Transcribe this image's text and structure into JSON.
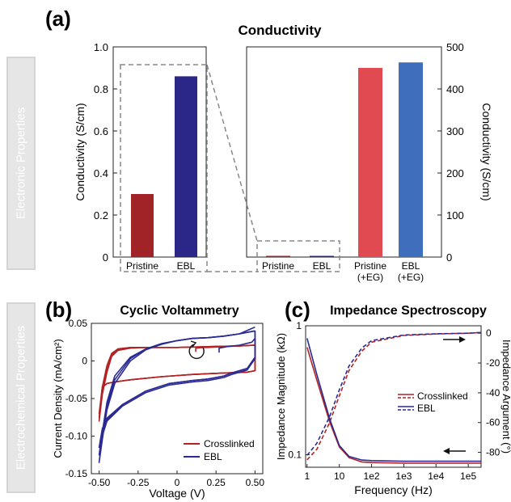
{
  "side_labels": {
    "electronic": "Electronic Properties",
    "electrochemical": "Electrochemical Properties"
  },
  "panel_labels": {
    "a": "(a)",
    "b": "(b)",
    "c": "(c)"
  },
  "colors": {
    "crosslinked": "#b22224",
    "ebl": "#2b2a93",
    "pristine_eg": "#e24a52",
    "ebl_eg": "#3f6ebd",
    "dash_box": "#888888",
    "side_panel": "#e6e6e6"
  },
  "chart_data": [
    {
      "id": "conductivity-left",
      "type": "bar",
      "title": "Conductivity",
      "ylabel": "Conductivity (S/cm)",
      "categories": [
        "Pristine",
        "EBL"
      ],
      "values": [
        0.3,
        0.86
      ],
      "bar_colors": [
        "#a12227",
        "#2b2789"
      ],
      "ylim": [
        0,
        1.0
      ],
      "yticks": [
        0,
        0.2,
        0.4,
        0.6,
        0.8,
        1.0
      ],
      "ytick_labels": [
        "0",
        "0.2",
        "0.4",
        "0.6",
        "0.8",
        "1.0"
      ]
    },
    {
      "id": "conductivity-right",
      "type": "bar",
      "ylabel": "Conductivity (S/cm)",
      "y_axis_side": "right",
      "categories": [
        "Pristine",
        "EBL",
        "Pristine\n(+EG)",
        "EBL\n(+EG)"
      ],
      "values": [
        0.3,
        0.86,
        450,
        463
      ],
      "bar_colors": [
        "#a12227",
        "#2b2789",
        "#e24a52",
        "#3f6ebd"
      ],
      "ylim": [
        0,
        500
      ],
      "yticks": [
        0,
        100,
        200,
        300,
        400,
        500
      ],
      "ytick_labels": [
        "0",
        "100",
        "200",
        "300",
        "400",
        "500"
      ]
    },
    {
      "id": "cyclic-voltammetry",
      "type": "line",
      "title": "Cyclic Voltammetry",
      "xlabel": "Voltage (V)",
      "ylabel": "Current Density (mA/cm²)",
      "xlim": [
        -0.55,
        0.55
      ],
      "ylim": [
        -0.15,
        0.05
      ],
      "xticks": [
        -0.5,
        -0.25,
        0,
        0.25,
        0.5
      ],
      "xtick_labels": [
        "-0.50",
        "-0.25",
        "0",
        "0.25",
        "0.50"
      ],
      "yticks": [
        -0.15,
        -0.1,
        -0.05,
        0,
        0.05
      ],
      "ytick_labels": [
        "-0.15",
        "-0.10",
        "-0.05",
        "0",
        "0.05"
      ],
      "legend": "bottom-right",
      "series": [
        {
          "name": "Crosslinked",
          "color": "#b22224",
          "cycles": [
            {
              "x": [
                0.12,
                0.12,
                0.17,
                0.2,
                0.3,
                0.4,
                0.48,
                0.5,
                0.5,
                0.45,
                0.3,
                0.1,
                -0.1,
                -0.3,
                -0.4,
                -0.45,
                -0.48,
                -0.5,
                -0.48,
                -0.45,
                -0.42,
                -0.38,
                -0.3,
                -0.2,
                0.0,
                0.2,
                0.4,
                0.5
              ],
              "y": [
                0.012,
                0.017,
                0.018,
                0.018,
                0.019,
                0.02,
                0.021,
                0.021,
                -0.013,
                -0.015,
                -0.016,
                -0.018,
                -0.021,
                -0.025,
                -0.028,
                -0.03,
                -0.035,
                -0.07,
                -0.035,
                -0.006,
                0.01,
                0.016,
                0.018,
                0.018,
                0.018,
                0.019,
                0.02,
                0.021
              ]
            },
            {
              "x": [
                0.5,
                0.5,
                0.45,
                0.3,
                0.1,
                -0.1,
                -0.3,
                -0.4,
                -0.45,
                -0.48,
                -0.5,
                -0.48,
                -0.45,
                -0.42,
                -0.38,
                -0.3,
                -0.2,
                0.0,
                0.2,
                0.4,
                0.5
              ],
              "y": [
                0.021,
                -0.013,
                -0.015,
                -0.016,
                -0.018,
                -0.021,
                -0.025,
                -0.028,
                -0.03,
                -0.035,
                -0.075,
                -0.04,
                -0.012,
                0.008,
                0.015,
                0.018,
                0.018,
                0.018,
                0.019,
                0.02,
                0.021
              ]
            },
            {
              "x": [
                0.5,
                0.5,
                0.45,
                0.3,
                0.1,
                -0.1,
                -0.3,
                -0.4,
                -0.45,
                -0.48,
                -0.5,
                -0.48,
                -0.45,
                -0.42,
                -0.38,
                -0.3,
                -0.2,
                0.0,
                0.2,
                0.4,
                0.5
              ],
              "y": [
                0.021,
                -0.013,
                -0.015,
                -0.016,
                -0.018,
                -0.021,
                -0.025,
                -0.028,
                -0.03,
                -0.035,
                -0.08,
                -0.045,
                -0.015,
                0.006,
                0.014,
                0.017,
                0.018,
                0.018,
                0.019,
                0.02,
                0.021
              ]
            }
          ]
        },
        {
          "name": "EBL",
          "color": "#2b2a93",
          "cycles": [
            {
              "x": [
                0.27,
                0.27,
                0.32,
                0.4,
                0.48,
                0.5,
                0.5,
                0.45,
                0.35,
                0.3,
                0.25,
                0.2,
                0.1,
                -0.05,
                -0.2,
                -0.35,
                -0.45,
                -0.48,
                -0.5,
                -0.48,
                -0.45,
                -0.4,
                -0.3,
                -0.2,
                -0.1,
                0.0,
                0.1,
                0.2,
                0.3,
                0.4,
                0.5
              ],
              "y": [
                0.011,
                0.017,
                0.019,
                0.021,
                0.025,
                0.03,
                0.005,
                -0.01,
                -0.016,
                -0.02,
                -0.022,
                -0.024,
                -0.026,
                -0.03,
                -0.04,
                -0.058,
                -0.076,
                -0.09,
                -0.115,
                -0.095,
                -0.055,
                -0.02,
                0.005,
                0.016,
                0.023,
                0.027,
                0.03,
                0.031,
                0.033,
                0.036,
                0.04
              ]
            },
            {
              "x": [
                0.5,
                0.5,
                0.45,
                0.35,
                0.3,
                0.25,
                0.2,
                0.1,
                -0.05,
                -0.2,
                -0.35,
                -0.45,
                -0.48,
                -0.5,
                -0.48,
                -0.45,
                -0.4,
                -0.3,
                -0.2,
                -0.1,
                0.0,
                0.1,
                0.2,
                0.3,
                0.4,
                0.5
              ],
              "y": [
                0.04,
                0.005,
                -0.01,
                -0.016,
                -0.02,
                -0.022,
                -0.024,
                -0.026,
                -0.03,
                -0.04,
                -0.058,
                -0.078,
                -0.095,
                -0.125,
                -0.1,
                -0.06,
                -0.025,
                0.003,
                0.016,
                0.023,
                0.027,
                0.03,
                0.031,
                0.033,
                0.036,
                0.04
              ]
            },
            {
              "x": [
                0.5,
                0.5,
                0.45,
                0.35,
                0.3,
                0.25,
                0.2,
                0.1,
                -0.05,
                -0.2,
                -0.35,
                -0.45,
                -0.48,
                -0.5,
                -0.48,
                -0.45,
                -0.4,
                -0.3,
                -0.2,
                -0.1,
                0.0,
                0.1,
                0.2,
                0.3,
                0.4,
                0.5
              ],
              "y": [
                0.04,
                0.003,
                -0.012,
                -0.018,
                -0.022,
                -0.024,
                -0.026,
                -0.028,
                -0.032,
                -0.042,
                -0.06,
                -0.08,
                -0.1,
                -0.135,
                -0.105,
                -0.065,
                -0.03,
                0.0,
                0.015,
                0.022,
                0.027,
                0.03,
                0.031,
                0.033,
                0.036,
                0.045
              ]
            }
          ]
        }
      ]
    },
    {
      "id": "impedance-spectroscopy",
      "type": "line",
      "title": "Impedance Spectroscopy",
      "xlabel": "Frequency (Hz)",
      "ylabel": "Impedance Magnitude (kΩ)",
      "y2label": "Impedance Argument (°)",
      "x_scale": "log",
      "y_scale": "log",
      "xlim": [
        0.9,
        250000
      ],
      "ylim": [
        0.08,
        1.0
      ],
      "y2lim": [
        -90,
        5
      ],
      "xticks": [
        1,
        10,
        100,
        1000,
        10000,
        100000
      ],
      "xtick_labels": [
        "1",
        "10",
        "1e2",
        "1e3",
        "1e4",
        "1e5"
      ],
      "yticks": [
        0.1,
        1
      ],
      "ytick_labels": [
        "0.1",
        "1"
      ],
      "y2ticks": [
        0,
        -20,
        -40,
        -60,
        -80
      ],
      "y2tick_labels": [
        "0",
        "-20",
        "-40",
        "-60",
        "-80"
      ],
      "legend": "center-right",
      "series": [
        {
          "name": "Crosslinked",
          "color": "#b22224",
          "magnitude": {
            "x": [
              1,
              2,
              5,
              10,
              20,
              50,
              100,
              1000,
              10000,
              100000,
              250000
            ],
            "y": [
              0.68,
              0.38,
              0.18,
              0.115,
              0.095,
              0.088,
              0.087,
              0.086,
              0.086,
              0.086,
              0.086
            ]
          },
          "argument": {
            "x": [
              1,
              2,
              5,
              10,
              20,
              50,
              100,
              1000,
              10000,
              100000,
              250000
            ],
            "y": [
              -85,
              -78,
              -60,
              -42,
              -25,
              -12,
              -6,
              -1.5,
              -0.5,
              0,
              0.5
            ]
          }
        },
        {
          "name": "EBL",
          "color": "#2b2a93",
          "magnitude": {
            "x": [
              1,
              2,
              5,
              10,
              20,
              50,
              100,
              1000,
              10000,
              100000,
              250000
            ],
            "y": [
              0.8,
              0.42,
              0.19,
              0.118,
              0.097,
              0.091,
              0.09,
              0.089,
              0.089,
              0.089,
              0.089
            ]
          },
          "argument": {
            "x": [
              1,
              2,
              5,
              10,
              20,
              50,
              100,
              1000,
              10000,
              100000,
              250000
            ],
            "y": [
              -82,
              -74,
              -56,
              -38,
              -22,
              -10,
              -5,
              -1.2,
              -0.4,
              0,
              0.5
            ]
          }
        }
      ]
    }
  ]
}
